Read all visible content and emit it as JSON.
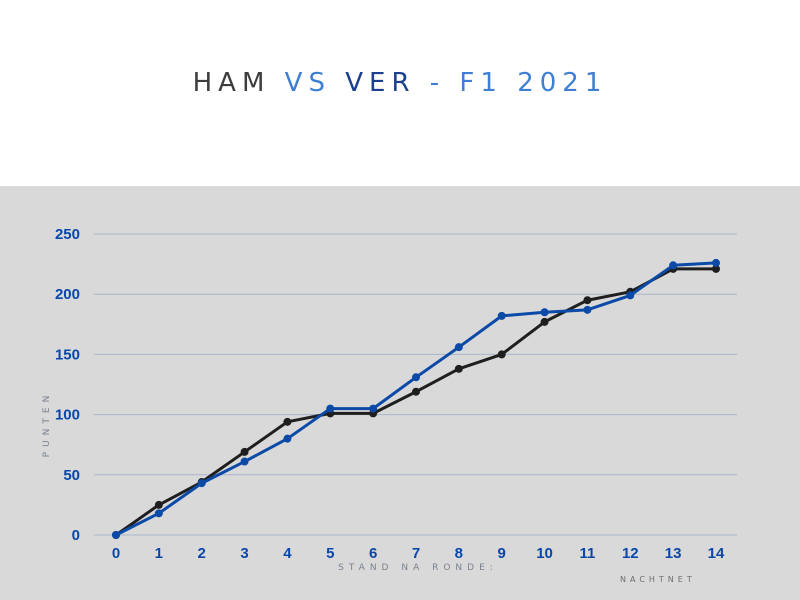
{
  "title": {
    "part1": "HAM ",
    "part2": "VS ",
    "part3": "VER ",
    "part4": "- F1 2021",
    "color1": "#3d3d3d",
    "color2": "#3f7fd1",
    "color3": "#1a3f8f",
    "color4": "#3f7fd1"
  },
  "credit": "NACHTNET",
  "colors": {
    "panel": "#d9d9d9",
    "grid": "#a9b6cc",
    "tick": "#0a47a9",
    "axis_label": "#7a8290",
    "credit": "#6d6d6d"
  },
  "chart_data": {
    "type": "line",
    "x": [
      0,
      1,
      2,
      3,
      4,
      5,
      6,
      7,
      8,
      9,
      10,
      11,
      12,
      13,
      14
    ],
    "xlabel": "STAND NA RONDE:",
    "ylabel": "PUNTEN",
    "xlim": [
      0,
      14
    ],
    "ylim": [
      0,
      250
    ],
    "yticks": [
      0,
      50,
      100,
      150,
      200,
      250
    ],
    "grid": true,
    "series": [
      {
        "color": "#1f1f1f",
        "values": [
          0,
          25,
          44,
          69,
          94,
          101,
          101,
          119,
          138,
          150,
          177,
          195,
          202,
          221,
          221
        ]
      },
      {
        "color": "#0c4aa8",
        "values": [
          0,
          18,
          43,
          61,
          80,
          105,
          105,
          131,
          156,
          182,
          185,
          187,
          199,
          224,
          226
        ]
      }
    ]
  }
}
